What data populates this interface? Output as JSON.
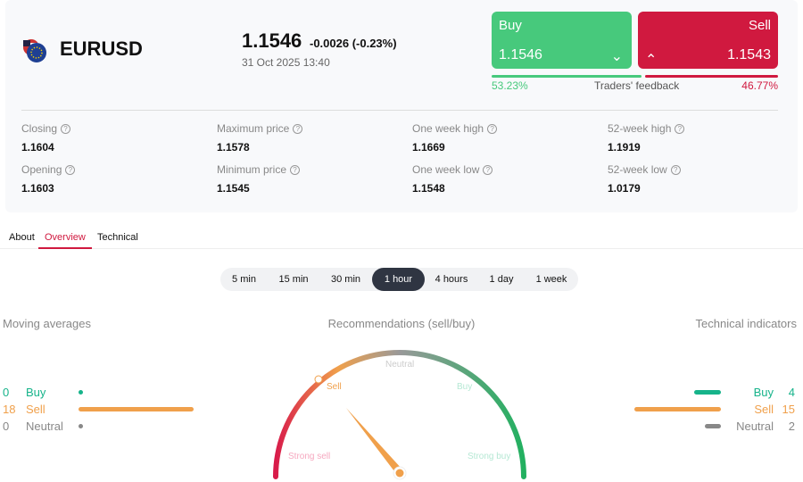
{
  "instrument": {
    "symbol": "EURUSD",
    "price": "1.1546",
    "change": "-0.0026 (-0.23%)",
    "datetime": "31 Oct 2025 13:40"
  },
  "trade": {
    "buy_label": "Buy",
    "buy_price": "1.1546",
    "sell_label": "Sell",
    "sell_price": "1.1543",
    "buy_pct": "53.23%",
    "sell_pct": "46.77%",
    "feedback_label": "Traders' feedback",
    "buy_fraction": 0.5323
  },
  "stats": [
    {
      "label": "Closing",
      "value": "1.1604"
    },
    {
      "label": "Maximum price",
      "value": "1.1578"
    },
    {
      "label": "One week high",
      "value": "1.1669"
    },
    {
      "label": "52-week high",
      "value": "1.1919"
    },
    {
      "label": "Opening",
      "value": "1.1603"
    },
    {
      "label": "Minimum price",
      "value": "1.1545"
    },
    {
      "label": "One week low",
      "value": "1.1548"
    },
    {
      "label": "52-week low",
      "value": "1.0179"
    }
  ],
  "tabs": [
    {
      "label": "About"
    },
    {
      "label": "Overview",
      "active": true
    },
    {
      "label": "Technical"
    }
  ],
  "timeframes": [
    "5 min",
    "15 min",
    "30 min",
    "1 hour",
    "4 hours",
    "1 day",
    "1 week"
  ],
  "active_timeframe": "1 hour",
  "moving_averages": {
    "title": "Moving averages",
    "rows": [
      {
        "count": "0",
        "label": "Buy"
      },
      {
        "count": "18",
        "label": "Sell"
      },
      {
        "count": "0",
        "label": "Neutral"
      }
    ]
  },
  "technical_indicators": {
    "title": "Technical indicators",
    "rows": [
      {
        "count": "4",
        "label": "Buy"
      },
      {
        "count": "15",
        "label": "Sell"
      },
      {
        "count": "2",
        "label": "Neutral"
      }
    ]
  },
  "gauge": {
    "title": "Recommendations (sell/buy)",
    "labels": {
      "strong_sell": "Strong sell",
      "sell": "Sell",
      "neutral": "Neutral",
      "buy": "Buy",
      "strong_buy": "Strong buy"
    },
    "reading": "Sell"
  },
  "colors": {
    "buy": "#47c97c",
    "sell": "#d0193f",
    "ma_buy": "#16b38a",
    "ma_sell": "#f0a04b",
    "neutral": "#888888"
  }
}
